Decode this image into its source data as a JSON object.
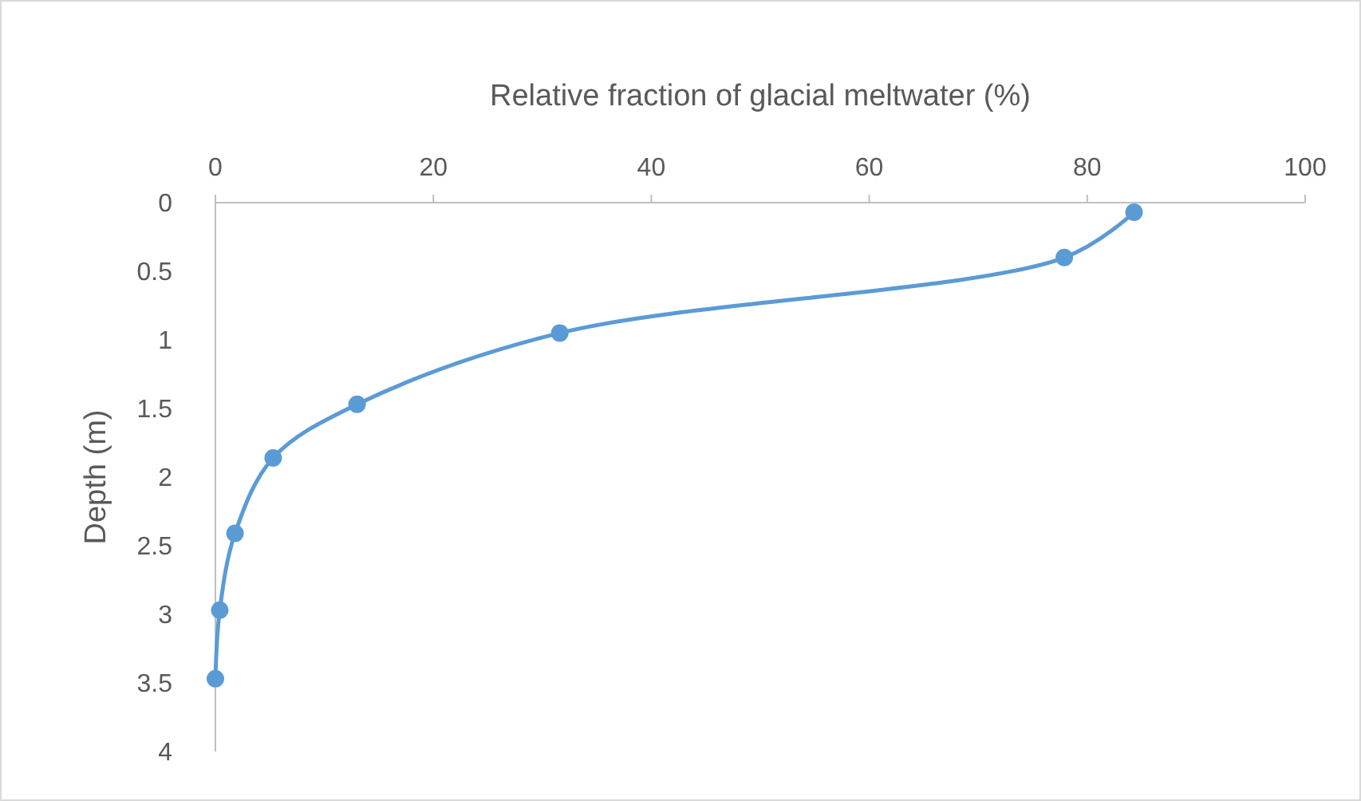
{
  "chart_data": {
    "type": "line",
    "xlabel": "Relative fraction of glacial meltwater (%)",
    "ylabel": "Depth (m)",
    "xlim": [
      0,
      100
    ],
    "xticks": [
      0,
      20,
      40,
      60,
      80,
      100
    ],
    "ylim": [
      4,
      0
    ],
    "yticks": [
      0,
      0.5,
      1,
      1.5,
      2,
      2.5,
      3,
      3.5,
      4
    ],
    "grid": false,
    "marker": "circle",
    "line_style": "solid",
    "series": [
      {
        "color": "#5b9bd5",
        "x": [
          84.3,
          77.9,
          31.6,
          13.0,
          5.3,
          1.8,
          0.4,
          0
        ],
        "values": [
          0.07,
          0.4,
          0.95,
          1.47,
          1.86,
          2.41,
          2.97,
          3.47
        ]
      }
    ]
  }
}
